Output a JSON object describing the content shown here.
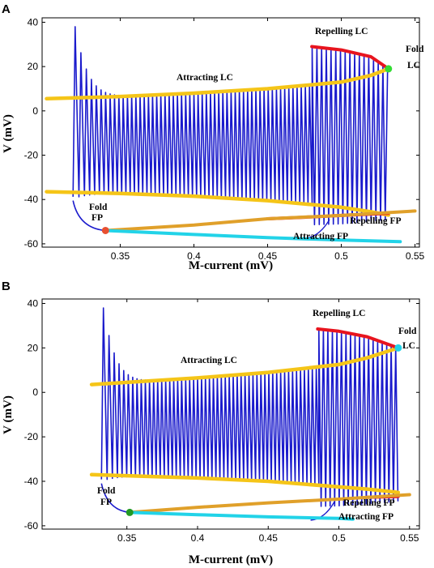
{
  "chart_data": [
    {
      "type": "line",
      "panel": "A",
      "xlabel": "M-current (mV)",
      "ylabel": "V (mV)",
      "xlim": [
        0.3,
        0.55
      ],
      "ylim": [
        -60,
        40
      ],
      "xticks": [
        "0.35",
        "0.4",
        "0.45",
        "0.5",
        "0.55"
      ],
      "yticks": [
        "40",
        "20",
        "0",
        "-20",
        "-40",
        "-60"
      ],
      "grid": false,
      "series": [
        {
          "name": "Attracting LC",
          "color": "#f5c518",
          "x": [
            0.3,
            0.35,
            0.4,
            0.45,
            0.5,
            0.52,
            0.532
          ],
          "y": [
            5.5,
            6.5,
            8,
            10,
            13,
            16,
            19
          ]
        },
        {
          "name": "Attracting LC",
          "color": "#f5c518",
          "x": [
            0.3,
            0.35,
            0.4,
            0.45,
            0.5,
            0.52,
            0.532
          ],
          "y": [
            -36.5,
            -37.3,
            -38.5,
            -40.5,
            -43.5,
            -45.5,
            -47
          ]
        },
        {
          "name": "Repelling LC",
          "color": "#e8141e",
          "x": [
            0.48,
            0.5,
            0.52,
            0.532
          ],
          "y": [
            29,
            27.5,
            24.5,
            19
          ]
        },
        {
          "name": "Repelling FP",
          "color": "#e8141e",
          "x": [
            0.45,
            0.475,
            0.5,
            0.532
          ],
          "y": [
            -48.7,
            -48,
            -47.2,
            -46.2
          ]
        },
        {
          "name": "",
          "color": "#e0a02a",
          "x": [
            0.34,
            0.4,
            0.45,
            0.5,
            0.55
          ],
          "y": [
            -54,
            -51.5,
            -48.7,
            -47.2,
            -45.2
          ]
        },
        {
          "name": "Attracting FP",
          "color": "#22d3e8",
          "x": [
            0.34,
            0.4,
            0.45,
            0.5,
            0.54
          ],
          "y": [
            -54,
            -55.8,
            -57.2,
            -58.3,
            -59
          ]
        }
      ],
      "points": [
        {
          "label": "Fold FP",
          "x": 0.34,
          "y": -54,
          "color": "#e85030"
        },
        {
          "label": "Fold LC",
          "x": 0.532,
          "y": 19,
          "color": "#33dd33"
        }
      ],
      "annotations": [
        "Attracting LC",
        "Repelling LC",
        "Fold",
        "LC",
        "Fold",
        "FP",
        "Repelling FP",
        "Attracting FP"
      ]
    },
    {
      "type": "line",
      "panel": "B",
      "xlabel": "M-current (mV)",
      "ylabel": "V (mV)",
      "xlim": [
        0.3,
        0.55
      ],
      "ylim": [
        -60,
        40
      ],
      "xticks": [
        "0.35",
        "0.4",
        "0.45",
        "0.5",
        "0.55"
      ],
      "yticks": [
        "40",
        "20",
        "0",
        "-20",
        "-40",
        "-60"
      ],
      "grid": false,
      "series": [
        {
          "name": "Attracting LC",
          "color": "#f5c518",
          "x": [
            0.325,
            0.35,
            0.4,
            0.45,
            0.5,
            0.52,
            0.542
          ],
          "y": [
            3.5,
            4.5,
            6.5,
            9,
            12.5,
            15.5,
            20
          ]
        },
        {
          "name": "Attracting LC",
          "color": "#f5c518",
          "x": [
            0.325,
            0.35,
            0.4,
            0.45,
            0.5,
            0.52,
            0.542
          ],
          "y": [
            -37,
            -37.5,
            -38.5,
            -40,
            -42.5,
            -43.5,
            -45
          ]
        },
        {
          "name": "Repelling LC",
          "color": "#e8141e",
          "x": [
            0.485,
            0.5,
            0.52,
            0.542
          ],
          "y": [
            28.5,
            27.5,
            25,
            20
          ]
        },
        {
          "name": "Repelling FP",
          "color": "#e8141e",
          "x": [
            0.52,
            0.542
          ],
          "y": [
            -47.2,
            -46.8
          ]
        },
        {
          "name": "",
          "color": "#e0a02a",
          "x": [
            0.352,
            0.4,
            0.45,
            0.5,
            0.55
          ],
          "y": [
            -54,
            -51.7,
            -49.7,
            -48,
            -46
          ]
        },
        {
          "name": "Attracting FP",
          "color": "#22d3e8",
          "x": [
            0.352,
            0.4,
            0.45,
            0.5,
            0.51
          ],
          "y": [
            -54,
            -55,
            -56,
            -56.7,
            -57
          ]
        }
      ],
      "points": [
        {
          "label": "Fold FP",
          "x": 0.352,
          "y": -54,
          "color": "#229922"
        },
        {
          "label": "Fold LC",
          "x": 0.542,
          "y": 20,
          "color": "#22d3e8"
        }
      ],
      "annotations": [
        "Attracting LC",
        "Repelling LC",
        "Fold",
        "LC",
        "Fold",
        "FP",
        "Repelling FP",
        "Attracting FP"
      ]
    }
  ]
}
